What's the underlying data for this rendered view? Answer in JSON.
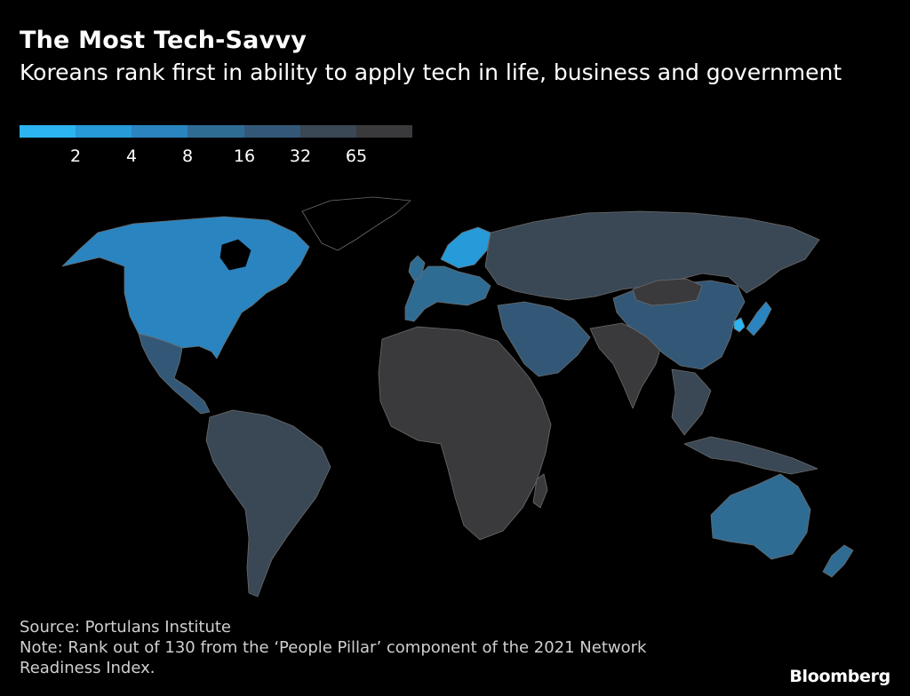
{
  "header": {
    "title": "The Most Tech-Savvy",
    "subtitle": "Koreans rank first in ability to apply tech in life, business and government"
  },
  "legend": {
    "ticks": [
      "2",
      "4",
      "8",
      "16",
      "32",
      "65"
    ],
    "colors": [
      "#2cb4f2",
      "#279ad9",
      "#2a84bf",
      "#2f6c94",
      "#335877",
      "#3a4755",
      "#3a3a3c"
    ]
  },
  "map": {
    "no_data_color": "#000000",
    "regions": [
      {
        "name": "North America (US & Canada)",
        "color": "#2a84bf"
      },
      {
        "name": "Mexico & Central America",
        "color": "#335877"
      },
      {
        "name": "South America",
        "color": "#3a4755"
      },
      {
        "name": "Greenland",
        "color": "#000000"
      },
      {
        "name": "Western Europe",
        "color": "#2f6c94"
      },
      {
        "name": "Scandinavia",
        "color": "#279ad9"
      },
      {
        "name": "Russia & Central Asia",
        "color": "#3a4755"
      },
      {
        "name": "Middle East",
        "color": "#335877"
      },
      {
        "name": "Africa",
        "color": "#3a3a3c"
      },
      {
        "name": "China",
        "color": "#335877"
      },
      {
        "name": "Mongolia",
        "color": "#3a3a3c"
      },
      {
        "name": "South Korea",
        "color": "#2cb4f2"
      },
      {
        "name": "Japan",
        "color": "#2a84bf"
      },
      {
        "name": "India & South Asia",
        "color": "#3a3a3c"
      },
      {
        "name": "Southeast Asia",
        "color": "#3a4755"
      },
      {
        "name": "Australia",
        "color": "#2f6c94"
      },
      {
        "name": "New Zealand",
        "color": "#2f6c94"
      }
    ]
  },
  "footer": {
    "source": "Source: Portulans Institute",
    "note_line1": "Note: Rank out of 130 from the ‘People Pillar’ component of the 2021 Network",
    "note_line2": "Readiness Index."
  },
  "brand": "Bloomberg"
}
